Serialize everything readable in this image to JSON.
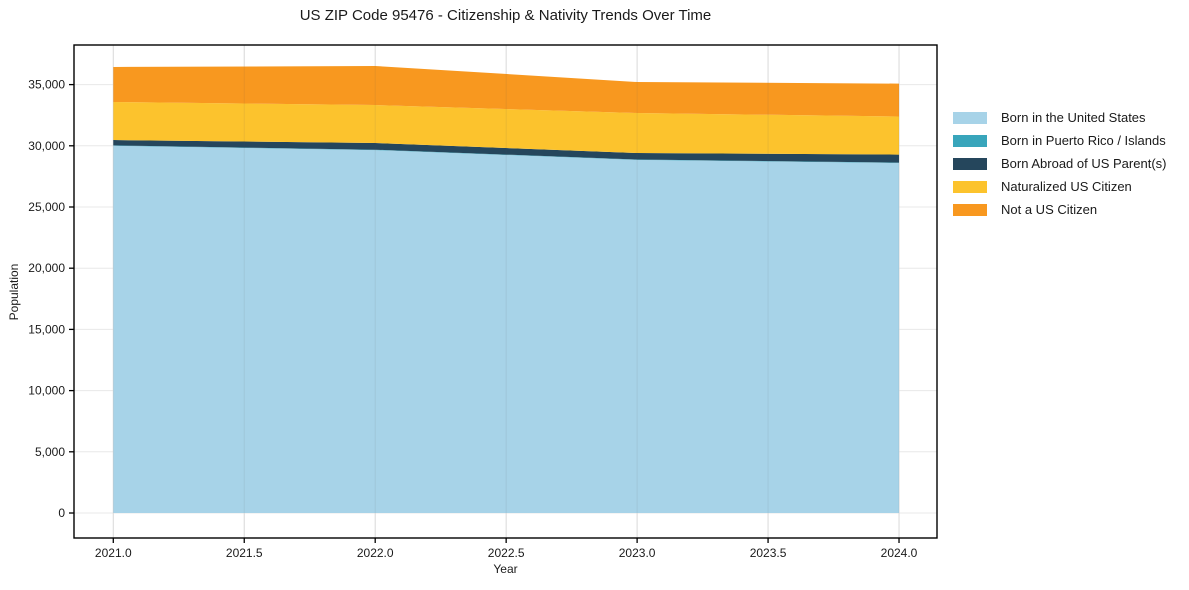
{
  "chart_data": {
    "type": "area",
    "stacked": true,
    "title": "US ZIP Code 95476 - Citizenship & Nativity Trends Over Time",
    "xlabel": "Year",
    "ylabel": "Population",
    "x": [
      2021,
      2022,
      2023,
      2024
    ],
    "series": [
      {
        "name": "Born in the United States",
        "color": "#a7d3e8",
        "values": [
          30000,
          29650,
          28850,
          28600
        ]
      },
      {
        "name": "Born in Puerto Rico / Islands",
        "color": "#38a5bb",
        "values": [
          30,
          30,
          30,
          30
        ]
      },
      {
        "name": "Born Abroad of US Parent(s)",
        "color": "#25465c",
        "values": [
          440,
          550,
          530,
          650
        ]
      },
      {
        "name": "Naturalized US Citizen",
        "color": "#fcc32d",
        "values": [
          3110,
          3100,
          3270,
          3110
        ]
      },
      {
        "name": "Not a US Citizen",
        "color": "#f8981f",
        "values": [
          2860,
          3190,
          2530,
          2690
        ]
      }
    ],
    "stack_totals": [
      36440,
      36520,
      35210,
      35080
    ],
    "xticks": {
      "values": [
        2021.0,
        2021.5,
        2022.0,
        2022.5,
        2023.0,
        2023.5,
        2024.0
      ],
      "labels": [
        "2021.0",
        "2021.5",
        "2022.0",
        "2022.5",
        "2023.0",
        "2023.5",
        "2024.0"
      ]
    },
    "yticks": {
      "values": [
        0,
        5000,
        10000,
        15000,
        20000,
        25000,
        30000,
        35000
      ],
      "labels": [
        "0",
        "5,000",
        "10,000",
        "15,000",
        "20,000",
        "25,000",
        "30,000",
        "35,000"
      ]
    },
    "xlim": [
      2020.85,
      2024.145
    ],
    "ylim": [
      -2042,
      38235
    ],
    "grid": true,
    "legend_position": "right-outside",
    "style": {
      "background": "#ffffff",
      "gridline_color": "#e8e8e8",
      "axis_color": "#000000",
      "text_color": "#1a1a1a"
    }
  }
}
